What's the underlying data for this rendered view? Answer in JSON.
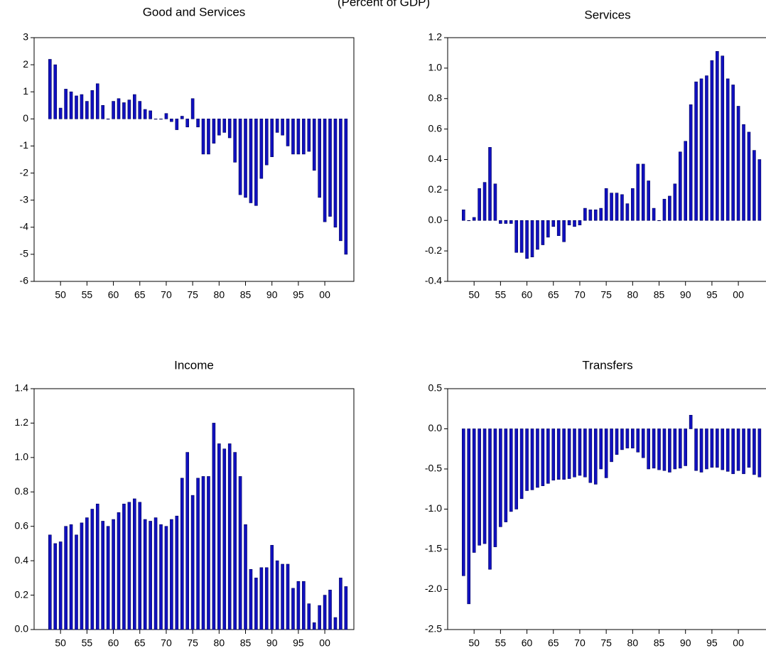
{
  "title": "(Percent of GDP)",
  "chart_data": [
    {
      "type": "bar",
      "title": "Good and Services",
      "x": [
        1948,
        1949,
        1950,
        1951,
        1952,
        1953,
        1954,
        1955,
        1956,
        1957,
        1958,
        1959,
        1960,
        1961,
        1962,
        1963,
        1964,
        1965,
        1966,
        1967,
        1968,
        1969,
        1970,
        1971,
        1972,
        1973,
        1974,
        1975,
        1976,
        1977,
        1978,
        1979,
        1980,
        1981,
        1982,
        1983,
        1984,
        1985,
        1986,
        1987,
        1988,
        1989,
        1990,
        1991,
        1992,
        1993,
        1994,
        1995,
        1996,
        1997,
        1998,
        1999,
        2000,
        2001,
        2002,
        2003,
        2004
      ],
      "values": [
        2.2,
        2.0,
        0.4,
        1.1,
        1.0,
        0.85,
        0.9,
        0.65,
        1.05,
        1.3,
        0.5,
        0,
        0.65,
        0.75,
        0.6,
        0.7,
        0.9,
        0.65,
        0.35,
        0.3,
        0,
        0,
        0.2,
        -0.1,
        -0.4,
        0.1,
        -0.3,
        0.75,
        -0.3,
        -1.3,
        -1.3,
        -0.9,
        -0.6,
        -0.5,
        -0.7,
        -1.6,
        -2.8,
        -2.9,
        -3.1,
        -3.2,
        -2.2,
        -1.7,
        -1.4,
        -0.5,
        -0.6,
        -1.0,
        -1.3,
        -1.3,
        -1.3,
        -1.2,
        -1.9,
        -2.9,
        -3.8,
        -3.6,
        -4.0,
        -4.5,
        -5.0
      ],
      "color": "#1010c0",
      "xlim": [
        1945,
        2005.5
      ],
      "ylim": [
        -6,
        3
      ],
      "xticks": [
        {
          "value": 1950,
          "label": "50"
        },
        {
          "value": 1955,
          "label": "55"
        },
        {
          "value": 1960,
          "label": "60"
        },
        {
          "value": 1965,
          "label": "65"
        },
        {
          "value": 1970,
          "label": "70"
        },
        {
          "value": 1975,
          "label": "75"
        },
        {
          "value": 1980,
          "label": "80"
        },
        {
          "value": 1985,
          "label": "85"
        },
        {
          "value": 1990,
          "label": "90"
        },
        {
          "value": 1995,
          "label": "95"
        },
        {
          "value": 2000,
          "label": "00"
        }
      ],
      "yticks": [
        -6,
        -5,
        -4,
        -3,
        -2,
        -1,
        0,
        1,
        2,
        3
      ]
    },
    {
      "type": "bar",
      "title": "Services",
      "x": [
        1948,
        1949,
        1950,
        1951,
        1952,
        1953,
        1954,
        1955,
        1956,
        1957,
        1958,
        1959,
        1960,
        1961,
        1962,
        1963,
        1964,
        1965,
        1966,
        1967,
        1968,
        1969,
        1970,
        1971,
        1972,
        1973,
        1974,
        1975,
        1976,
        1977,
        1978,
        1979,
        1980,
        1981,
        1982,
        1983,
        1984,
        1985,
        1986,
        1987,
        1988,
        1989,
        1990,
        1991,
        1992,
        1993,
        1994,
        1995,
        1996,
        1997,
        1998,
        1999,
        2000,
        2001,
        2002,
        2003,
        2004
      ],
      "values": [
        0.07,
        0.0,
        0.02,
        0.21,
        0.25,
        0.48,
        0.24,
        -0.02,
        -0.02,
        -0.02,
        -0.21,
        -0.21,
        -0.25,
        -0.24,
        -0.19,
        -0.16,
        -0.11,
        -0.04,
        -0.1,
        -0.14,
        -0.03,
        -0.04,
        -0.03,
        0.08,
        0.07,
        0.07,
        0.08,
        0.21,
        0.18,
        0.18,
        0.17,
        0.11,
        0.21,
        0.37,
        0.37,
        0.26,
        0.08,
        0.0,
        0.14,
        0.16,
        0.24,
        0.45,
        0.52,
        0.76,
        0.91,
        0.93,
        0.95,
        1.05,
        1.11,
        1.08,
        0.93,
        0.89,
        0.75,
        0.63,
        0.58,
        0.46,
        0.4
      ],
      "color": "#1010c0",
      "xlim": [
        1945,
        2005.5
      ],
      "ylim": [
        -0.4,
        1.2
      ],
      "xticks": [
        {
          "value": 1950,
          "label": "50"
        },
        {
          "value": 1955,
          "label": "55"
        },
        {
          "value": 1960,
          "label": "60"
        },
        {
          "value": 1965,
          "label": "65"
        },
        {
          "value": 1970,
          "label": "70"
        },
        {
          "value": 1975,
          "label": "75"
        },
        {
          "value": 1980,
          "label": "80"
        },
        {
          "value": 1985,
          "label": "85"
        },
        {
          "value": 1990,
          "label": "90"
        },
        {
          "value": 1995,
          "label": "95"
        },
        {
          "value": 2000,
          "label": "00"
        }
      ],
      "yticks": [
        -0.4,
        -0.2,
        {
          "value": 0,
          "label": "0.0"
        },
        0.2,
        0.4,
        0.6,
        0.8,
        {
          "value": 1,
          "label": "1.0"
        },
        1.2
      ]
    },
    {
      "type": "bar",
      "title": "Income",
      "x": [
        1948,
        1949,
        1950,
        1951,
        1952,
        1953,
        1954,
        1955,
        1956,
        1957,
        1958,
        1959,
        1960,
        1961,
        1962,
        1963,
        1964,
        1965,
        1966,
        1967,
        1968,
        1969,
        1970,
        1971,
        1972,
        1973,
        1974,
        1975,
        1976,
        1977,
        1978,
        1979,
        1980,
        1981,
        1982,
        1983,
        1984,
        1985,
        1986,
        1987,
        1988,
        1989,
        1990,
        1991,
        1992,
        1993,
        1994,
        1995,
        1996,
        1997,
        1998,
        1999,
        2000,
        2001,
        2002,
        2003,
        2004
      ],
      "values": [
        0.55,
        0.5,
        0.51,
        0.6,
        0.61,
        0.55,
        0.62,
        0.65,
        0.7,
        0.73,
        0.63,
        0.6,
        0.64,
        0.68,
        0.73,
        0.74,
        0.76,
        0.74,
        0.64,
        0.63,
        0.65,
        0.61,
        0.6,
        0.64,
        0.66,
        0.88,
        1.03,
        0.78,
        0.88,
        0.89,
        0.89,
        1.2,
        1.08,
        1.05,
        1.08,
        1.03,
        0.89,
        0.61,
        0.35,
        0.3,
        0.36,
        0.36,
        0.49,
        0.4,
        0.38,
        0.38,
        0.24,
        0.28,
        0.28,
        0.15,
        0.04,
        0.14,
        0.2,
        0.23,
        0.07,
        0.3,
        0.25
      ],
      "color": "#1010c0",
      "xlim": [
        1945,
        2005.5
      ],
      "ylim": [
        0,
        1.4
      ],
      "xticks": [
        {
          "value": 1950,
          "label": "50"
        },
        {
          "value": 1955,
          "label": "55"
        },
        {
          "value": 1960,
          "label": "60"
        },
        {
          "value": 1965,
          "label": "65"
        },
        {
          "value": 1970,
          "label": "70"
        },
        {
          "value": 1975,
          "label": "75"
        },
        {
          "value": 1980,
          "label": "80"
        },
        {
          "value": 1985,
          "label": "85"
        },
        {
          "value": 1990,
          "label": "90"
        },
        {
          "value": 1995,
          "label": "95"
        },
        {
          "value": 2000,
          "label": "00"
        }
      ],
      "yticks": [
        {
          "value": 0,
          "label": "0.0"
        },
        0.2,
        0.4,
        0.6,
        0.8,
        {
          "value": 1,
          "label": "1.0"
        },
        1.2,
        1.4
      ]
    },
    {
      "type": "bar",
      "title": "Transfers",
      "x": [
        1948,
        1949,
        1950,
        1951,
        1952,
        1953,
        1954,
        1955,
        1956,
        1957,
        1958,
        1959,
        1960,
        1961,
        1962,
        1963,
        1964,
        1965,
        1966,
        1967,
        1968,
        1969,
        1970,
        1971,
        1972,
        1973,
        1974,
        1975,
        1976,
        1977,
        1978,
        1979,
        1980,
        1981,
        1982,
        1983,
        1984,
        1985,
        1986,
        1987,
        1988,
        1989,
        1990,
        1991,
        1992,
        1993,
        1994,
        1995,
        1996,
        1997,
        1998,
        1999,
        2000,
        2001,
        2002,
        2003,
        2004
      ],
      "values": [
        -1.83,
        -2.18,
        -1.54,
        -1.45,
        -1.43,
        -1.75,
        -1.47,
        -1.22,
        -1.16,
        -1.03,
        -1.0,
        -0.87,
        -0.77,
        -0.76,
        -0.73,
        -0.71,
        -0.68,
        -0.64,
        -0.63,
        -0.63,
        -0.62,
        -0.6,
        -0.58,
        -0.6,
        -0.67,
        -0.69,
        -0.5,
        -0.61,
        -0.41,
        -0.32,
        -0.26,
        -0.24,
        -0.24,
        -0.29,
        -0.36,
        -0.5,
        -0.49,
        -0.51,
        -0.52,
        -0.54,
        -0.5,
        -0.49,
        -0.46,
        0.17,
        -0.52,
        -0.54,
        -0.5,
        -0.48,
        -0.48,
        -0.51,
        -0.53,
        -0.56,
        -0.52,
        -0.56,
        -0.48,
        -0.57,
        -0.6
      ],
      "color": "#1010c0",
      "xlim": [
        1945,
        2005.5
      ],
      "ylim": [
        -2.5,
        0.5
      ],
      "xticks": [
        {
          "value": 1950,
          "label": "50"
        },
        {
          "value": 1955,
          "label": "55"
        },
        {
          "value": 1960,
          "label": "60"
        },
        {
          "value": 1965,
          "label": "65"
        },
        {
          "value": 1970,
          "label": "70"
        },
        {
          "value": 1975,
          "label": "75"
        },
        {
          "value": 1980,
          "label": "80"
        },
        {
          "value": 1985,
          "label": "85"
        },
        {
          "value": 1990,
          "label": "90"
        },
        {
          "value": 1995,
          "label": "95"
        },
        {
          "value": 2000,
          "label": "00"
        }
      ],
      "yticks": [
        -2.5,
        {
          "value": -2,
          "label": "-2.0"
        },
        -1.5,
        {
          "value": -1,
          "label": "-1.0"
        },
        -0.5,
        {
          "value": 0,
          "label": "0.0"
        },
        0.5
      ]
    }
  ]
}
